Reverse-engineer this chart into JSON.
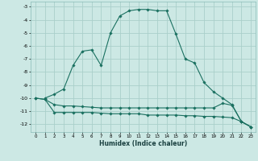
{
  "xlabel": "Humidex (Indice chaleur)",
  "bg_color": "#cce8e4",
  "grid_color": "#aacfca",
  "line_color": "#1a7060",
  "x_ticks": [
    0,
    1,
    2,
    3,
    4,
    5,
    6,
    7,
    8,
    9,
    10,
    11,
    12,
    13,
    14,
    15,
    16,
    17,
    18,
    19,
    20,
    21,
    22,
    23
  ],
  "ylim": [
    -12.6,
    -2.6
  ],
  "xlim": [
    -0.5,
    23.5
  ],
  "yticks": [
    -3,
    -4,
    -5,
    -6,
    -7,
    -8,
    -9,
    -10,
    -11,
    -12
  ],
  "curve1_x": [
    1,
    2,
    3,
    4,
    5,
    6,
    7,
    8,
    9,
    10,
    11,
    12,
    13,
    14,
    15,
    16,
    17,
    18,
    19,
    20,
    21,
    22,
    23
  ],
  "curve1_y": [
    -10.0,
    -9.7,
    -9.3,
    -7.5,
    -6.4,
    -6.3,
    -7.5,
    -5.0,
    -3.7,
    -3.3,
    -3.2,
    -3.2,
    -3.3,
    -3.3,
    -5.1,
    -7.0,
    -7.3,
    -8.8,
    -9.5,
    -10.0,
    -10.5,
    -11.8,
    -12.2
  ],
  "curve2_x": [
    0,
    1,
    2,
    3,
    4,
    5,
    6,
    7,
    8,
    9,
    10,
    11,
    12,
    13,
    14,
    15,
    16,
    17,
    18,
    19,
    20,
    21,
    22,
    23
  ],
  "curve2_y": [
    -10.0,
    -10.1,
    -10.5,
    -10.6,
    -10.6,
    -10.65,
    -10.7,
    -10.75,
    -10.75,
    -10.75,
    -10.75,
    -10.75,
    -10.75,
    -10.75,
    -10.75,
    -10.75,
    -10.75,
    -10.75,
    -10.75,
    -10.75,
    -10.4,
    -10.55,
    -11.8,
    -12.2
  ],
  "curve3_x": [
    0,
    1,
    2,
    3,
    4,
    5,
    6,
    7,
    8,
    9,
    10,
    11,
    12,
    13,
    14,
    15,
    16,
    17,
    18,
    19,
    20,
    21,
    22,
    23
  ],
  "curve3_y": [
    -10.0,
    -10.1,
    -11.1,
    -11.1,
    -11.1,
    -11.1,
    -11.1,
    -11.15,
    -11.2,
    -11.2,
    -11.2,
    -11.2,
    -11.3,
    -11.3,
    -11.3,
    -11.3,
    -11.35,
    -11.35,
    -11.4,
    -11.4,
    -11.45,
    -11.5,
    -11.8,
    -12.2
  ]
}
